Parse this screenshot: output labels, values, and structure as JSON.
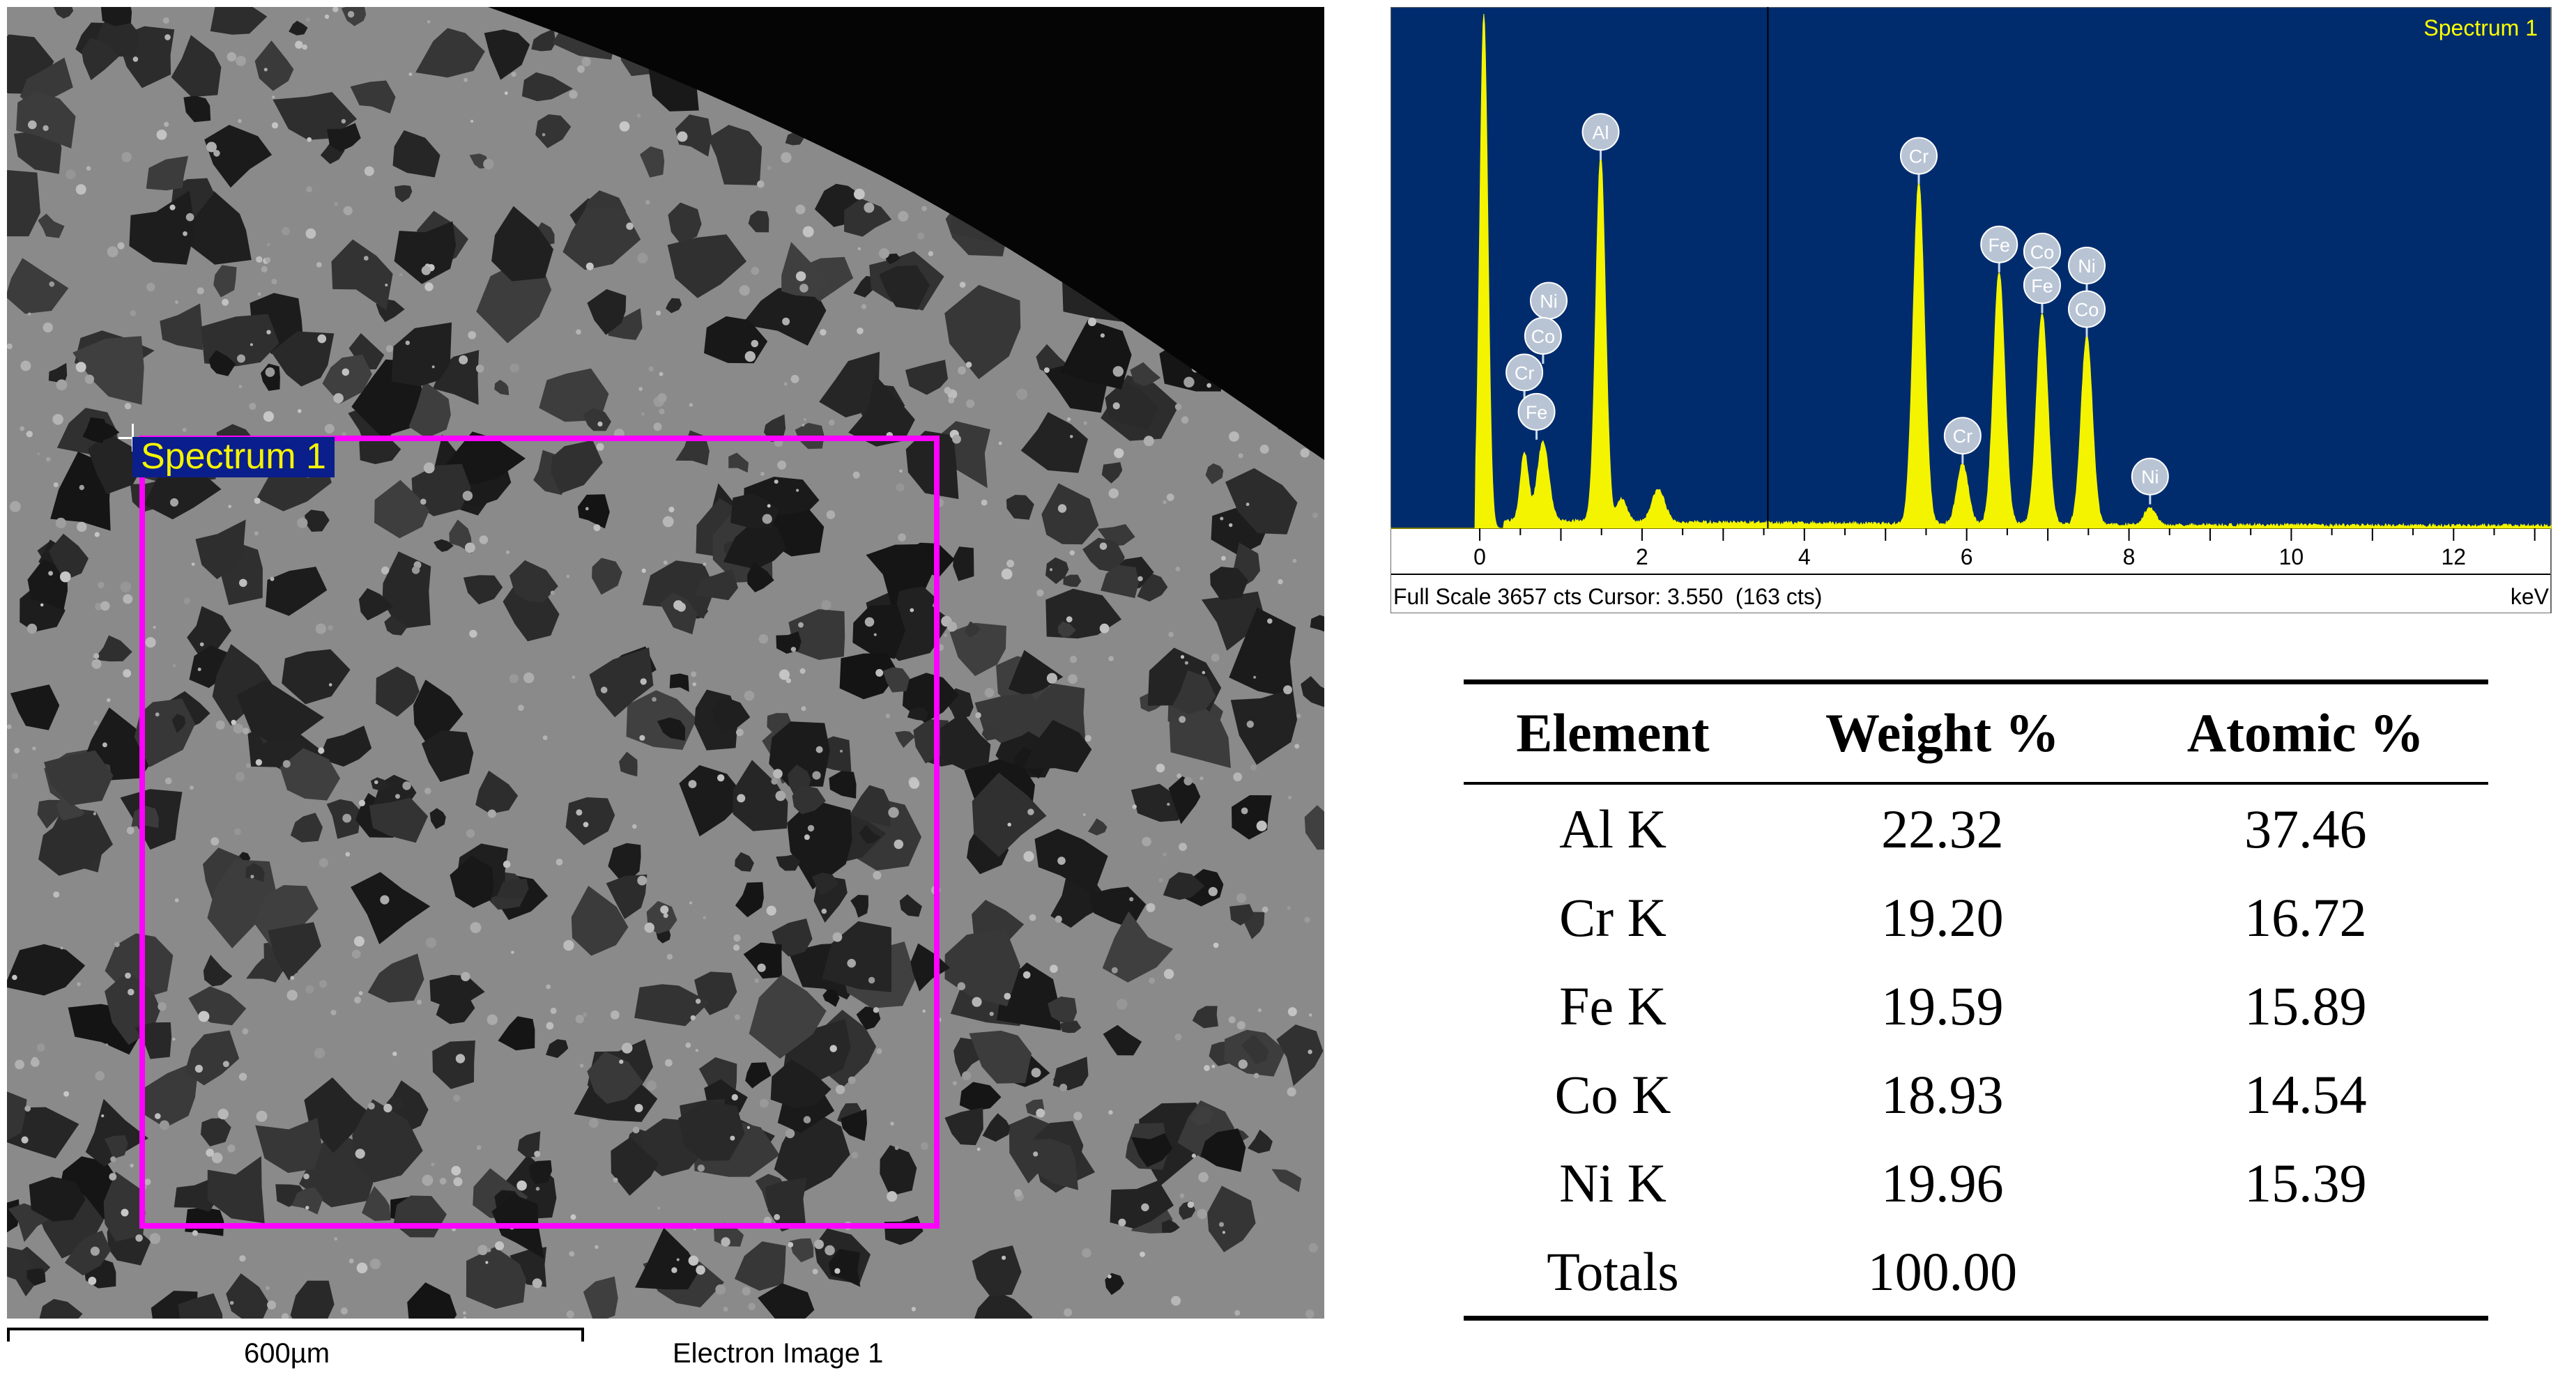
{
  "sem_image": {
    "roi_label": "Spectrum 1",
    "scale_bar_label": "600µm",
    "caption": "Electron Image 1",
    "roi_color": "#ff00ff",
    "label_bg": "#0a1e8c",
    "label_fg": "#f4f400"
  },
  "spectrum": {
    "title": "Spectrum 1",
    "footer": "Full Scale 3657 cts Cursor: 3.550  (163 cts)",
    "unit": "keV",
    "bg_color": "#002c6e",
    "line_color": "#f4f400",
    "cursor_kev": 3.55
  },
  "chart_data": {
    "type": "line",
    "xlabel": "keV",
    "ylabel": "",
    "xlim": [
      -1.1,
      13.2
    ],
    "ylim": [
      0,
      3657
    ],
    "xticks": [
      "0",
      "2",
      "4",
      "6",
      "8",
      "10",
      "12"
    ],
    "peaks": [
      {
        "x": 0.05,
        "y": 3657,
        "w": 0.05
      },
      {
        "x": 0.55,
        "y": 480,
        "w": 0.05
      },
      {
        "x": 0.78,
        "y": 560,
        "w": 0.07
      },
      {
        "x": 1.49,
        "y": 2600,
        "w": 0.06
      },
      {
        "x": 1.75,
        "y": 160,
        "w": 0.06
      },
      {
        "x": 2.2,
        "y": 230,
        "w": 0.08
      },
      {
        "x": 5.41,
        "y": 2430,
        "w": 0.07
      },
      {
        "x": 5.95,
        "y": 430,
        "w": 0.07
      },
      {
        "x": 6.4,
        "y": 1800,
        "w": 0.07
      },
      {
        "x": 6.93,
        "y": 1510,
        "w": 0.07
      },
      {
        "x": 7.48,
        "y": 1340,
        "w": 0.07
      },
      {
        "x": 8.26,
        "y": 120,
        "w": 0.07
      }
    ],
    "peak_labels": [
      {
        "text": "Al",
        "x": 1.49,
        "y": 2600
      },
      {
        "text": "Cr",
        "x": 5.41,
        "y": 2430
      },
      {
        "text": "Fe",
        "x": 6.4,
        "y": 1800
      },
      {
        "text": "Co",
        "x": 6.93,
        "y": 1750
      },
      {
        "text": "Ni",
        "x": 7.48,
        "y": 1650
      },
      {
        "text": "Fe",
        "x": 6.93,
        "y": 1510
      },
      {
        "text": "Co",
        "x": 7.48,
        "y": 1340
      },
      {
        "text": "Ni",
        "x": 0.85,
        "y": 1400
      },
      {
        "text": "Co",
        "x": 0.78,
        "y": 1150
      },
      {
        "text": "Cr",
        "x": 0.55,
        "y": 890
      },
      {
        "text": "Fe",
        "x": 0.7,
        "y": 610
      },
      {
        "text": "Cr",
        "x": 5.95,
        "y": 440
      },
      {
        "text": "Ni",
        "x": 8.26,
        "y": 150
      }
    ]
  },
  "table": {
    "headers": [
      "Element",
      "Weight %",
      "Atomic %"
    ],
    "rows": [
      [
        "Al K",
        "22.32",
        "37.46"
      ],
      [
        "Cr K",
        "19.20",
        "16.72"
      ],
      [
        "Fe K",
        "19.59",
        "15.89"
      ],
      [
        "Co K",
        "18.93",
        "14.54"
      ],
      [
        "Ni K",
        "19.96",
        "15.39"
      ],
      [
        "Totals",
        "100.00",
        ""
      ]
    ]
  }
}
